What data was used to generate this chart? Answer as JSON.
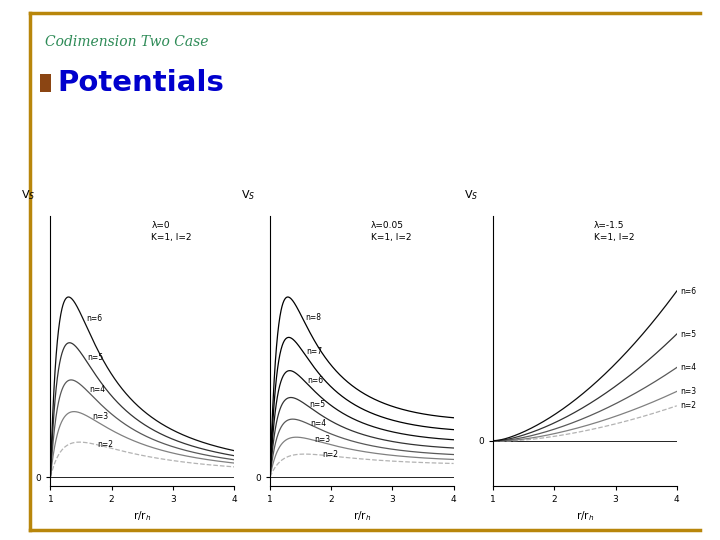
{
  "title": "Codimension Two Case",
  "subtitle": "Potentials",
  "bg_color": "#ffffff",
  "border_color": "#b8860b",
  "title_color": "#2e8b57",
  "subtitle_color": "#0000cd",
  "bullet_color": "#8b4513",
  "plots": [
    {
      "lambda": 0.0,
      "K": 1,
      "l": 2,
      "n_values": [
        2,
        3,
        4,
        5,
        6
      ],
      "param_text": "λ=0\nK=1, l=2",
      "n_labels_right": false
    },
    {
      "lambda": 0.05,
      "K": 1,
      "l": 2,
      "n_values": [
        2,
        3,
        4,
        5,
        6,
        7,
        8
      ],
      "param_text": "λ=0.05\nK=1, l=2",
      "n_labels_right": false
    },
    {
      "lambda": -1.5,
      "K": 1,
      "l": 2,
      "n_values": [
        2,
        3,
        4,
        5,
        6
      ],
      "param_text": "λ=-1.5\nK=1, l=2",
      "n_labels_right": true
    }
  ],
  "gray_shades": {
    "2": 0.7,
    "3": 0.5,
    "4": 0.35,
    "5": 0.2,
    "6": 0.05,
    "7": 0.0,
    "8": 0.0
  },
  "line_styles": {
    "2": "dashed",
    "3": "solid",
    "4": "solid",
    "5": "solid",
    "6": "solid",
    "7": "solid",
    "8": "solid"
  },
  "r_start": 1.001,
  "r_end": 4.0,
  "n_points": 800
}
